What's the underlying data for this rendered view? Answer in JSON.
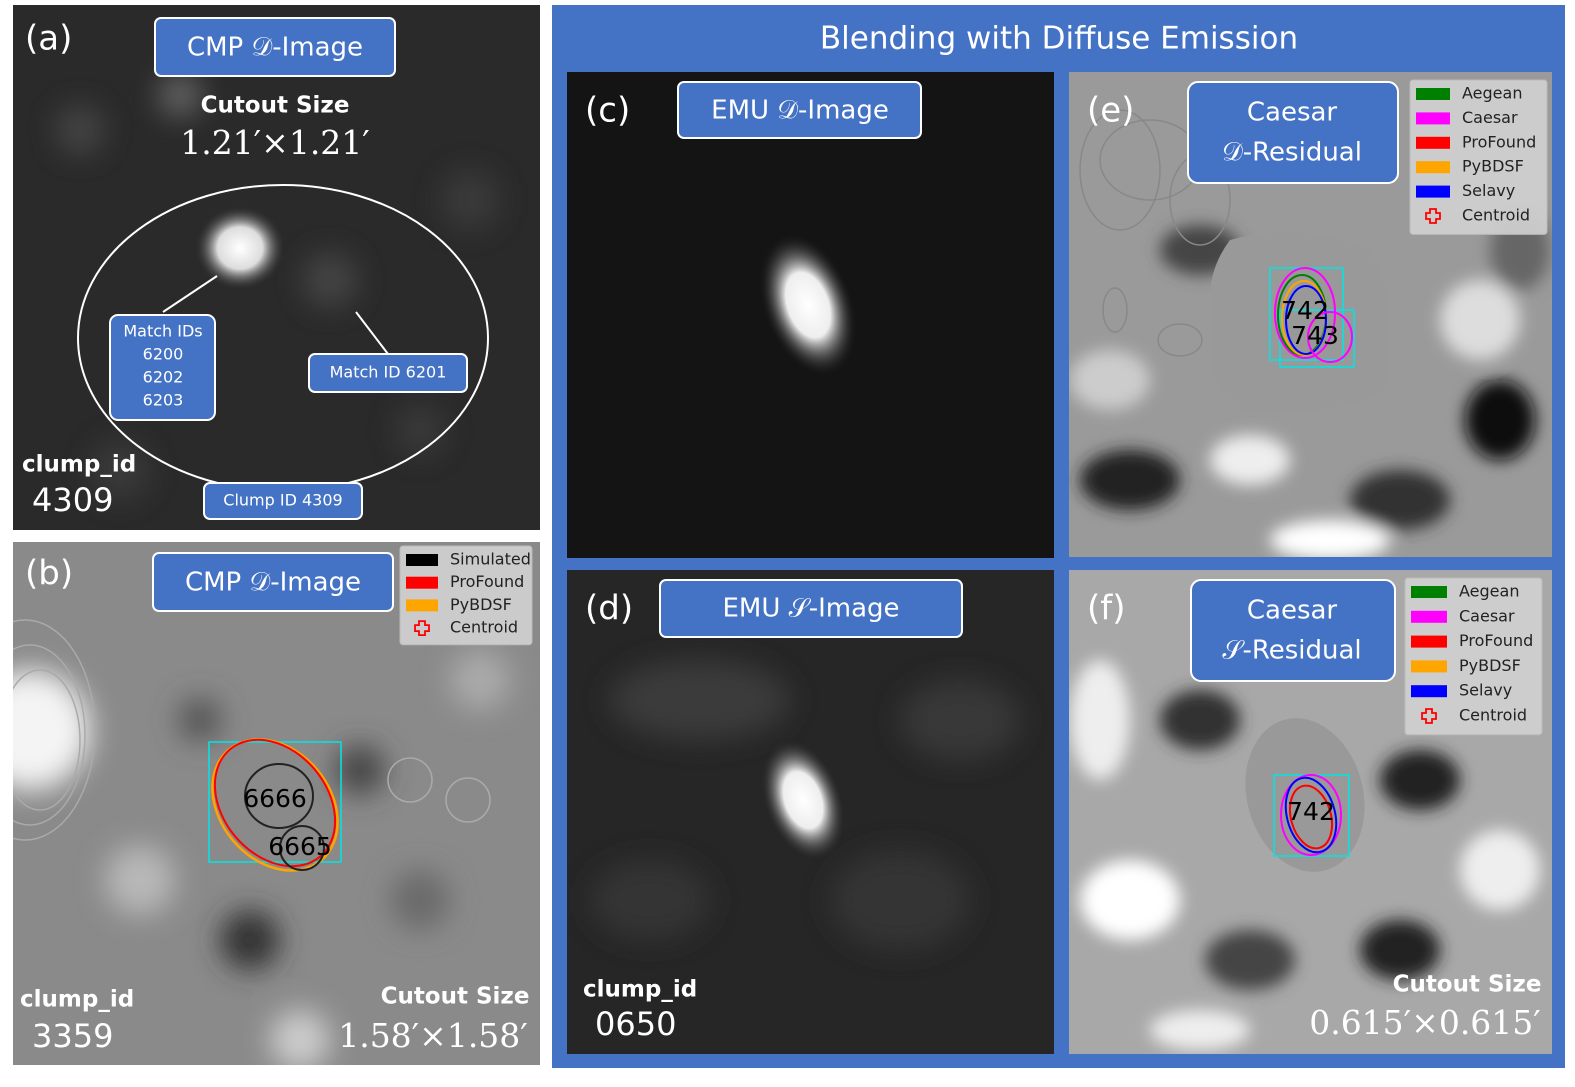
{
  "figure": {
    "title": "Blending with Diffuse Emission",
    "panels": {
      "a": {
        "label": "(a)",
        "badge": "CMP 𝒟-Image",
        "cutout_label": "Cutout Size",
        "cutout_size": "1.21′×1.21′",
        "match_ids_title": "Match IDs",
        "match_ids": [
          "6200",
          "6202",
          "6203"
        ],
        "match_id": "Match ID 6201",
        "clump_callout": "Clump ID 4309",
        "clump_id_label": "clump_id",
        "clump_id": "4309"
      },
      "b": {
        "label": "(b)",
        "badge": "CMP 𝒟-Image",
        "legend": [
          {
            "name": "Simulated",
            "color": "#000000"
          },
          {
            "name": "ProFound",
            "color": "#ff0000"
          },
          {
            "name": "PyBDSF",
            "color": "#ffa500"
          },
          {
            "name": "Centroid",
            "color": "#ff0000",
            "marker": "plus"
          }
        ],
        "source_ids": [
          "6666",
          "6665"
        ],
        "clump_id_label": "clump_id",
        "clump_id": "3359",
        "cutout_label": "Cutout Size",
        "cutout_size": "1.58′×1.58′"
      },
      "c": {
        "label": "(c)",
        "badge": "EMU 𝒟-Image"
      },
      "d": {
        "label": "(d)",
        "badge": "EMU 𝒮-Image",
        "clump_id_label": "clump_id",
        "clump_id": "0650"
      },
      "e": {
        "label": "(e)",
        "badge": [
          "Caesar",
          "𝒟-Residual"
        ],
        "legend": [
          {
            "name": "Aegean",
            "color": "#008000"
          },
          {
            "name": "Caesar",
            "color": "#ff00ff"
          },
          {
            "name": "ProFound",
            "color": "#ff0000"
          },
          {
            "name": "PyBDSF",
            "color": "#ffa500"
          },
          {
            "name": "Selavy",
            "color": "#0000ff"
          },
          {
            "name": "Centroid",
            "color": "#ff0000",
            "marker": "plus"
          }
        ],
        "source_ids": [
          "742",
          "743"
        ]
      },
      "f": {
        "label": "(f)",
        "badge": [
          "Caesar",
          "𝒮-Residual"
        ],
        "legend": [
          {
            "name": "Aegean",
            "color": "#008000"
          },
          {
            "name": "Caesar",
            "color": "#ff00ff"
          },
          {
            "name": "ProFound",
            "color": "#ff0000"
          },
          {
            "name": "PyBDSF",
            "color": "#ffa500"
          },
          {
            "name": "Selavy",
            "color": "#0000ff"
          },
          {
            "name": "Centroid",
            "color": "#ff0000",
            "marker": "plus"
          }
        ],
        "source_ids": [
          "742"
        ],
        "cutout_label": "Cutout Size",
        "cutout_size": "0.615′×0.615′"
      }
    }
  }
}
